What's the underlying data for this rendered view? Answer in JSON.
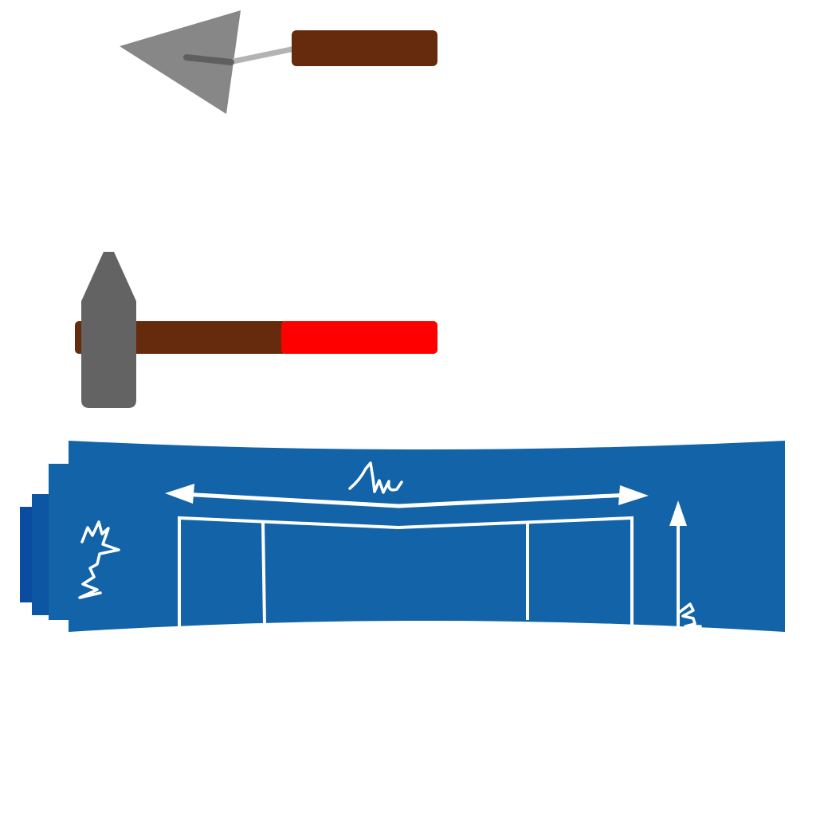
{
  "scene": {
    "tools": [
      {
        "name": "trowel",
        "icon": "trowel-icon"
      },
      {
        "name": "hammer",
        "icon": "hammer-icon"
      }
    ],
    "blueprint": {
      "icon": "blueprint-icon"
    },
    "colors": {
      "background": "#ffffff",
      "trowel_blade": "#878787",
      "trowel_shank": "#5f5f5f",
      "trowel_tang": "#b3b3b3",
      "wood_handle": "#662a0c",
      "hammer_head": "#636363",
      "hammer_grip": "#ff0000",
      "blueprint_paper": "#1263a8",
      "blueprint_roll_1": "#0d56a3",
      "blueprint_roll_2": "#0a4ca2",
      "blueprint_ink": "#ffffff"
    }
  }
}
